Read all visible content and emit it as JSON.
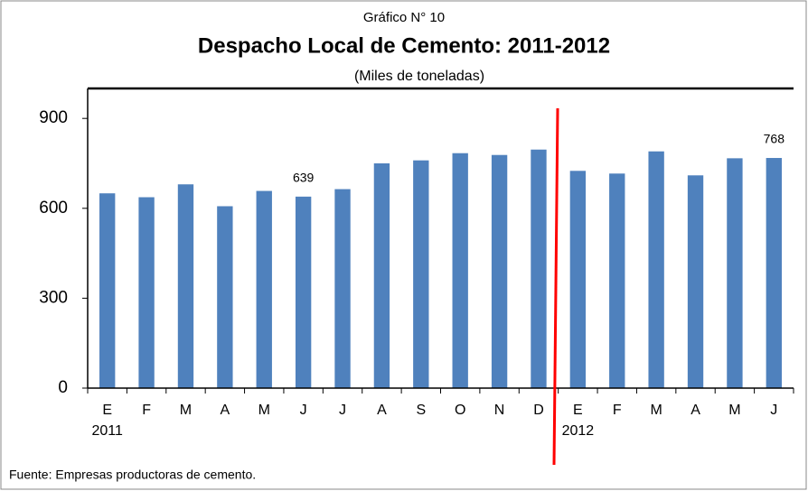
{
  "chart_data": {
    "type": "bar",
    "supertitle": "Gráfico N° 10",
    "title": "Despacho Local de Cemento: 2011-2012",
    "subtitle": "(Miles de toneladas)",
    "source": "Fuente: Empresas productoras de cemento.",
    "categories": [
      "E",
      "F",
      "M",
      "A",
      "M",
      "J",
      "J",
      "A",
      "S",
      "O",
      "N",
      "D",
      "E",
      "F",
      "M",
      "A",
      "M",
      "J"
    ],
    "year_labels": [
      "2011",
      null,
      null,
      null,
      null,
      null,
      null,
      null,
      null,
      null,
      null,
      null,
      "2012",
      null,
      null,
      null,
      null,
      null
    ],
    "values": [
      650,
      637,
      680,
      607,
      658,
      639,
      664,
      750,
      760,
      784,
      778,
      796,
      725,
      716,
      790,
      710,
      767,
      768
    ],
    "value_labels": [
      null,
      null,
      null,
      null,
      null,
      "639",
      null,
      null,
      null,
      null,
      null,
      null,
      null,
      null,
      null,
      null,
      null,
      "768"
    ],
    "color": "#4f81bd",
    "ylim": [
      0,
      1000
    ],
    "yticks": [
      0,
      300,
      600,
      900
    ],
    "grid": false
  }
}
